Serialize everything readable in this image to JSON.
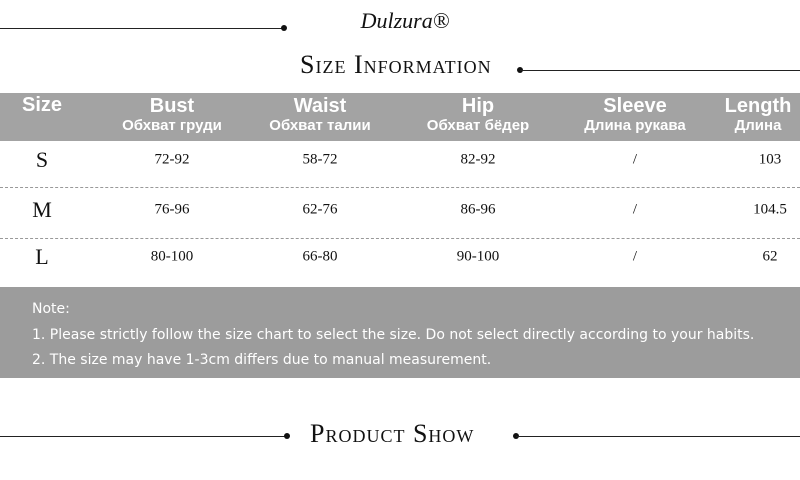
{
  "header": {
    "brand": "Dulzura®",
    "title": "Size Information"
  },
  "table": {
    "columns": [
      {
        "name": "Size",
        "subtitle": null
      },
      {
        "name": "Bust",
        "subtitle": "Обхват груди"
      },
      {
        "name": "Waist",
        "subtitle": "Обхват талии"
      },
      {
        "name": "Hip",
        "subtitle": "Обхват бёдер"
      },
      {
        "name": "Sleeve",
        "subtitle": "Длина рукава"
      },
      {
        "name": "Length",
        "subtitle": "Длина"
      }
    ],
    "rows": [
      [
        "S",
        "72-92",
        "58-72",
        "82-92",
        "/",
        "103"
      ],
      [
        "M",
        "76-96",
        "62-76",
        "86-96",
        "/",
        "104.5"
      ],
      [
        "L",
        "80-100",
        "66-80",
        "90-100",
        "/",
        "62"
      ]
    ]
  },
  "note": {
    "label": "Note:",
    "lines": [
      "1. Please strictly follow the size chart to select the size. Do not select directly according to your habits.",
      "2. The size may have 1-3cm differs due to manual measurement."
    ]
  },
  "footer": {
    "title": "Product Show"
  }
}
